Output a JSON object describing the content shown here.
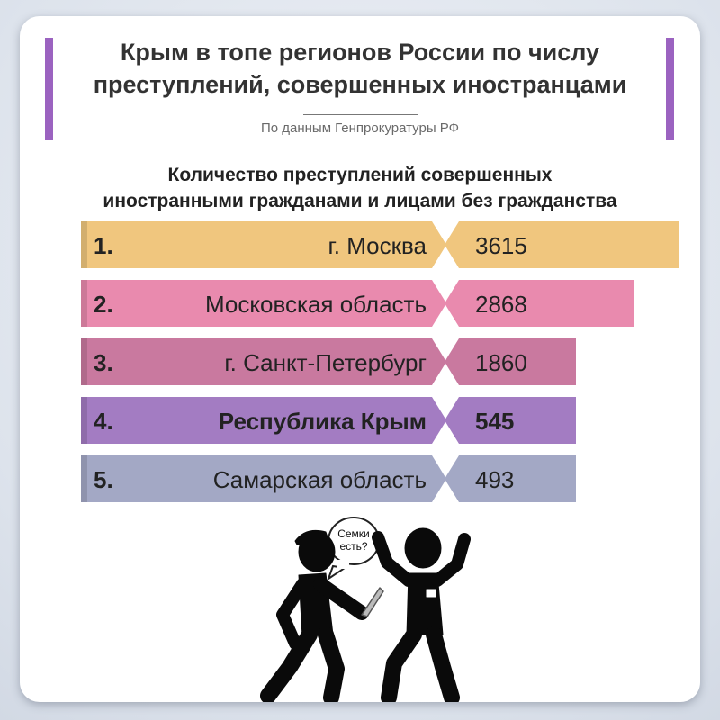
{
  "header": {
    "title_line1": "Крым в топе регионов России по числу",
    "title_line2": "преступлений, совершенных иностранцами",
    "source": "По данным Генпрокуратуры РФ"
  },
  "subtitle_line1": "Количество преступлений совершенных",
  "subtitle_line2": "иностранными гражданами и лицами без гражданства",
  "illustration": {
    "speech_line1": "Семки",
    "speech_line2": "есть?"
  },
  "chart_data": {
    "type": "bar",
    "categories": [
      "г. Москва",
      "Московская область",
      "г. Санкт-Петербург",
      "Республика Крым",
      "Самарская область"
    ],
    "ranks": [
      "1.",
      "2.",
      "3.",
      "4.",
      "5."
    ],
    "values": [
      3615,
      2868,
      1860,
      545,
      493
    ],
    "highlight": "Республика Крым",
    "colors": [
      "#f0c67e",
      "#e98aae",
      "#c9799f",
      "#a37cc2",
      "#a3a8c5"
    ]
  }
}
